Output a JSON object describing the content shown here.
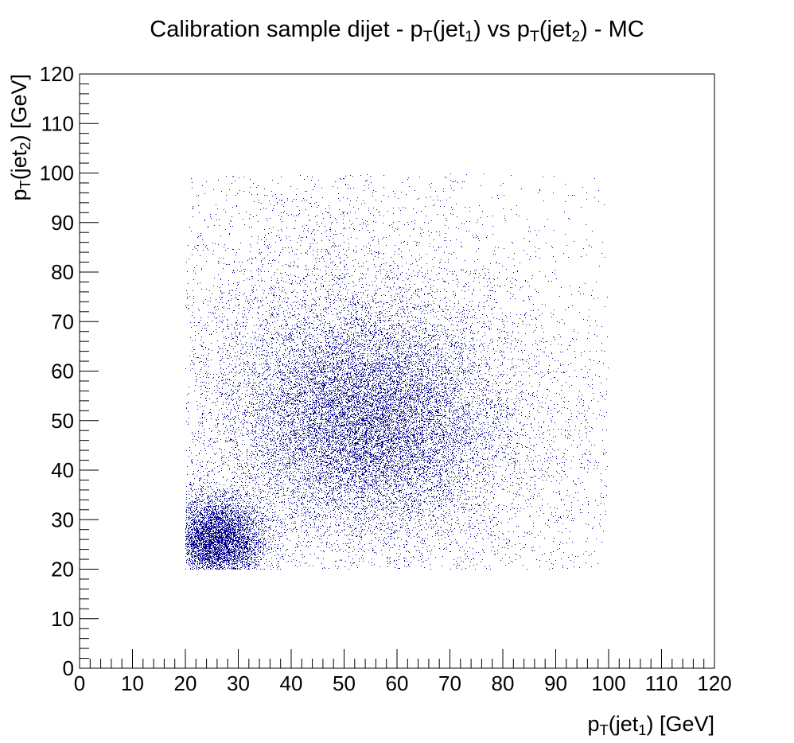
{
  "chart_data": {
    "type": "scatter",
    "title": {
      "parts": [
        {
          "text": "Calibration sample dijet - p"
        },
        {
          "text": "T",
          "sub": true
        },
        {
          "text": "(jet"
        },
        {
          "text": "1",
          "sub": true
        },
        {
          "text": ") vs p"
        },
        {
          "text": "T",
          "sub": true
        },
        {
          "text": "(jet"
        },
        {
          "text": "2",
          "sub": true
        },
        {
          "text": ") - MC"
        }
      ]
    },
    "xlabel": {
      "parts": [
        {
          "text": "p"
        },
        {
          "text": "T",
          "sub": true
        },
        {
          "text": "(jet"
        },
        {
          "text": "1",
          "sub": true
        },
        {
          "text": ") [GeV]"
        }
      ]
    },
    "ylabel": {
      "parts": [
        {
          "text": "p"
        },
        {
          "text": "T",
          "sub": true
        },
        {
          "text": "(jet"
        },
        {
          "text": "2",
          "sub": true
        },
        {
          "text": ") [GeV]"
        }
      ]
    },
    "xlim": [
      0,
      120
    ],
    "ylim": [
      0,
      120
    ],
    "xticks": [
      "0",
      "10",
      "20",
      "30",
      "40",
      "50",
      "60",
      "70",
      "80",
      "90",
      "100",
      "110",
      "120"
    ],
    "yticks": [
      "0",
      "10",
      "20",
      "30",
      "40",
      "50",
      "60",
      "70",
      "80",
      "90",
      "100",
      "110",
      "120"
    ],
    "grid": false,
    "legend": "none",
    "marker_color": "#00008b",
    "data_region": {
      "x": [
        20,
        100
      ],
      "y": [
        20,
        100
      ]
    },
    "density_components": [
      {
        "mean": [
          26,
          26
        ],
        "sigma": [
          4.5,
          4.5
        ],
        "weight": 0.2
      },
      {
        "mean": [
          54,
          50
        ],
        "sigma": [
          12,
          11
        ],
        "weight": 0.42
      },
      {
        "mean": [
          45,
          60
        ],
        "sigma": [
          18,
          20
        ],
        "weight": 0.18
      },
      {
        "mean": [
          70,
          45
        ],
        "sigma": [
          20,
          18
        ],
        "weight": 0.1
      },
      {
        "mean": [
          60,
          60
        ],
        "sigma": [
          40,
          40
        ],
        "weight": 0.1
      }
    ]
  }
}
